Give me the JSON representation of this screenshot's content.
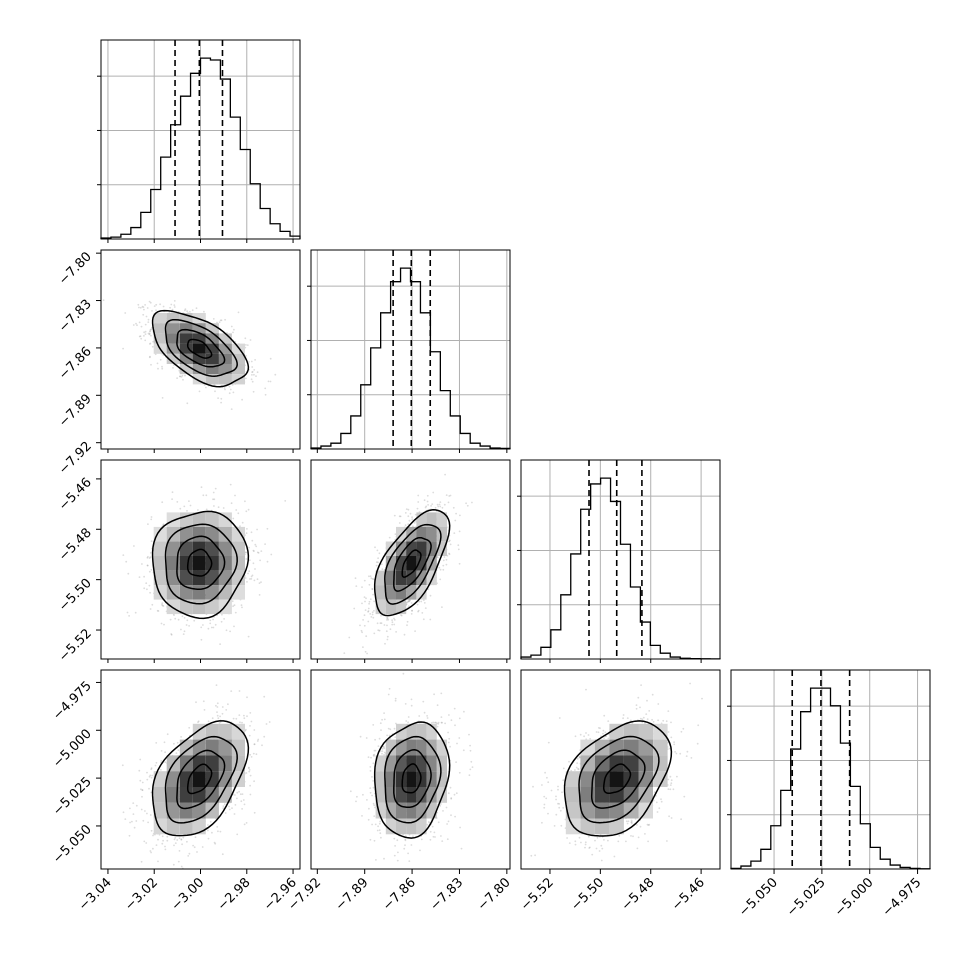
{
  "chart_data": {
    "type": "corner",
    "parameters": [
      {
        "range": [
          -3.043,
          -2.957
        ],
        "ticks": [
          -3.04,
          -3.02,
          -3.0,
          -2.98,
          -2.96
        ],
        "tick_labels": [
          "−3.04",
          "−3.02",
          "−3.00",
          "−2.98",
          "−2.96"
        ],
        "quantiles": [
          -3.011,
          -3.0005,
          -2.9905
        ],
        "hist_counts": [
          0.5,
          1,
          2.5,
          6,
          14,
          26,
          43,
          60,
          75,
          87,
          95,
          94,
          84,
          64,
          47,
          29,
          16,
          8,
          4,
          1.5
        ]
      },
      {
        "range": [
          -7.924,
          -7.798
        ],
        "ticks": [
          -7.92,
          -7.89,
          -7.86,
          -7.83,
          -7.8
        ],
        "tick_labels": [
          "−7.92",
          "−7.89",
          "−7.86",
          "−7.83",
          "−7.80"
        ],
        "quantiles": [
          -7.872,
          -7.8605,
          -7.8485
        ],
        "hist_counts": [
          0.5,
          1.5,
          3,
          8,
          17,
          33,
          52,
          70,
          86,
          93,
          86,
          70,
          50,
          30,
          17,
          8,
          3,
          1.5,
          0.5,
          0.3
        ]
      },
      {
        "range": [
          -5.5315,
          -5.4525
        ],
        "ticks": [
          -5.52,
          -5.5,
          -5.48,
          -5.46
        ],
        "tick_labels": [
          "−5.52",
          "−5.50",
          "−5.48",
          "−5.46"
        ],
        "quantiles": [
          -5.5045,
          -5.4935,
          -5.4835
        ],
        "hist_counts": [
          1,
          2,
          6,
          15,
          33,
          54,
          77,
          90,
          93,
          81,
          59,
          37,
          19,
          7,
          3,
          1,
          0.4,
          0.2,
          0.1,
          0.05
        ]
      },
      {
        "range": [
          -5.0725,
          -4.9685
        ],
        "ticks": [
          -5.05,
          -5.025,
          -5.0,
          -4.975
        ],
        "tick_labels": [
          "−5.050",
          "−5.025",
          "−5.000",
          "−4.975"
        ],
        "quantiles": [
          -5.0405,
          -5.0255,
          -5.0105
        ],
        "hist_counts": [
          0.3,
          1.5,
          4,
          10,
          22,
          40,
          61,
          80,
          92,
          92,
          83,
          64,
          42,
          23,
          11,
          5,
          2,
          0.8,
          0.3,
          0.1
        ]
      }
    ],
    "pair_stats": [
      {
        "row": 1,
        "col": 0,
        "corr": -0.55
      },
      {
        "row": 2,
        "col": 0,
        "corr": 0.05
      },
      {
        "row": 2,
        "col": 1,
        "corr": 0.62
      },
      {
        "row": 3,
        "col": 0,
        "corr": 0.45
      },
      {
        "row": 3,
        "col": 1,
        "corr": 0.15
      },
      {
        "row": 3,
        "col": 2,
        "corr": 0.38
      }
    ],
    "grid": true
  }
}
